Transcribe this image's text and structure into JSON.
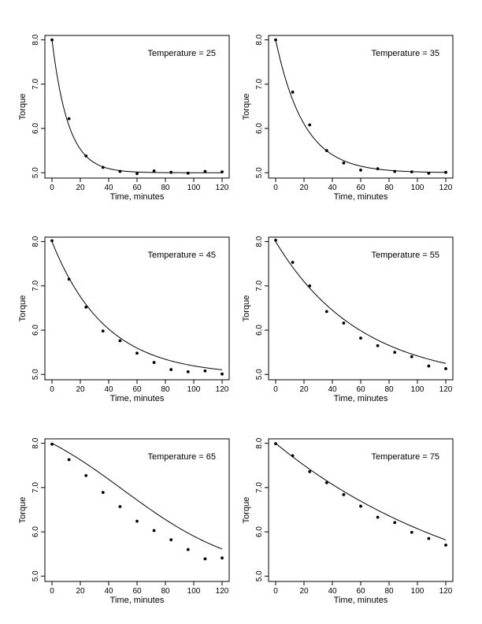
{
  "chart_data": [
    {
      "type": "scatter",
      "title": "",
      "annotation": "Temperature = 25",
      "xlabel": "Time, minutes",
      "ylabel": "Torque",
      "xlim": [
        -5,
        125
      ],
      "ylim": [
        4.88,
        8.1
      ],
      "xticks": [
        "0",
        "20",
        "40",
        "60",
        "80",
        "100",
        "120"
      ],
      "yticks": [
        "5.0",
        "6.0",
        "7.0",
        "8.0"
      ],
      "grid": false,
      "series": [
        {
          "kind": "points",
          "x": [
            0,
            12,
            24,
            36,
            48,
            60,
            72,
            84,
            96,
            108,
            120
          ],
          "y": [
            8.0,
            6.22,
            5.38,
            5.12,
            5.03,
            4.98,
            5.04,
            5.01,
            4.99,
            5.03,
            5.02
          ]
        },
        {
          "kind": "fit",
          "model": "exp_decay",
          "start": 8.0,
          "asymptote": 5.0,
          "rate": 0.0865
        }
      ]
    },
    {
      "type": "scatter",
      "title": "",
      "annotation": "Temperature = 35",
      "xlabel": "Time, minutes",
      "ylabel": "Torque",
      "xlim": [
        -5,
        125
      ],
      "ylim": [
        4.88,
        8.1
      ],
      "xticks": [
        "0",
        "20",
        "40",
        "60",
        "80",
        "100",
        "120"
      ],
      "yticks": [
        "5.0",
        "6.0",
        "7.0",
        "8.0"
      ],
      "grid": false,
      "series": [
        {
          "kind": "points",
          "x": [
            0,
            12,
            24,
            36,
            48,
            60,
            72,
            84,
            96,
            108,
            120
          ],
          "y": [
            8.0,
            6.82,
            6.08,
            5.5,
            5.22,
            5.06,
            5.09,
            5.03,
            5.02,
            4.99,
            5.01
          ]
        },
        {
          "kind": "fit",
          "model": "exp_decay",
          "start": 8.0,
          "asymptote": 5.0,
          "rate": 0.05
        }
      ]
    },
    {
      "type": "scatter",
      "title": "",
      "annotation": "Temperature = 45",
      "xlabel": "Time, minutes",
      "ylabel": "Torque",
      "xlim": [
        -5,
        125
      ],
      "ylim": [
        4.88,
        8.1
      ],
      "xticks": [
        "0",
        "20",
        "40",
        "60",
        "80",
        "100",
        "120"
      ],
      "yticks": [
        "5.0",
        "6.0",
        "7.0",
        "8.0"
      ],
      "grid": false,
      "series": [
        {
          "kind": "points",
          "x": [
            0,
            12,
            24,
            36,
            48,
            60,
            72,
            84,
            96,
            108,
            120
          ],
          "y": [
            8.02,
            7.15,
            6.52,
            5.98,
            5.76,
            5.48,
            5.27,
            5.11,
            5.06,
            5.08,
            5.01
          ]
        },
        {
          "kind": "fit",
          "model": "exp_decay",
          "start": 8.0,
          "asymptote": 4.98,
          "rate": 0.0265
        }
      ]
    },
    {
      "type": "scatter",
      "title": "",
      "annotation": "Temperature = 55",
      "xlabel": "Time, minutes",
      "ylabel": "Torque",
      "xlim": [
        -5,
        125
      ],
      "ylim": [
        4.88,
        8.1
      ],
      "xticks": [
        "0",
        "20",
        "40",
        "60",
        "80",
        "100",
        "120"
      ],
      "yticks": [
        "5.0",
        "6.0",
        "7.0",
        "8.0"
      ],
      "grid": false,
      "series": [
        {
          "kind": "points",
          "x": [
            0,
            12,
            24,
            36,
            48,
            60,
            72,
            84,
            96,
            108,
            120
          ],
          "y": [
            8.03,
            7.53,
            7.0,
            6.42,
            6.16,
            5.82,
            5.65,
            5.5,
            5.4,
            5.19,
            5.13
          ]
        },
        {
          "kind": "fit",
          "model": "exp_decay",
          "start": 8.0,
          "asymptote": 4.82,
          "rate": 0.0167
        }
      ]
    },
    {
      "type": "scatter",
      "title": "",
      "annotation": "Temperature = 65",
      "xlabel": "Time, minutes",
      "ylabel": "Torque",
      "xlim": [
        -5,
        125
      ],
      "ylim": [
        4.88,
        8.1
      ],
      "xticks": [
        "0",
        "20",
        "40",
        "60",
        "80",
        "100",
        "120"
      ],
      "yticks": [
        "5.0",
        "6.0",
        "7.0",
        "8.0"
      ],
      "grid": false,
      "series": [
        {
          "kind": "points",
          "x": [
            0,
            12,
            24,
            36,
            48,
            60,
            72,
            84,
            96,
            108,
            120
          ],
          "y": [
            7.98,
            7.63,
            7.27,
            6.89,
            6.57,
            6.24,
            6.03,
            5.82,
            5.6,
            5.39,
            5.41
          ]
        },
        {
          "kind": "fit",
          "model": "sigmoid_decay",
          "start": 8.0,
          "bottom": 5.0,
          "slope": 0.024,
          "midpoint": 50.0
        }
      ]
    },
    {
      "type": "scatter",
      "title": "",
      "annotation": "Temperature = 75",
      "xlabel": "Time, minutes",
      "ylabel": "Torque",
      "xlim": [
        -5,
        125
      ],
      "ylim": [
        4.88,
        8.1
      ],
      "xticks": [
        "0",
        "20",
        "40",
        "60",
        "80",
        "100",
        "120"
      ],
      "yticks": [
        "5.0",
        "6.0",
        "7.0",
        "8.0"
      ],
      "grid": false,
      "series": [
        {
          "kind": "points",
          "x": [
            0,
            12,
            24,
            36,
            48,
            60,
            72,
            84,
            96,
            108,
            120
          ],
          "y": [
            7.99,
            7.72,
            7.36,
            7.11,
            6.84,
            6.58,
            6.33,
            6.21,
            5.99,
            5.85,
            5.7
          ]
        },
        {
          "kind": "fit",
          "model": "exp_decay",
          "start": 8.0,
          "asymptote": 4.05,
          "rate": 0.0067
        }
      ]
    }
  ]
}
